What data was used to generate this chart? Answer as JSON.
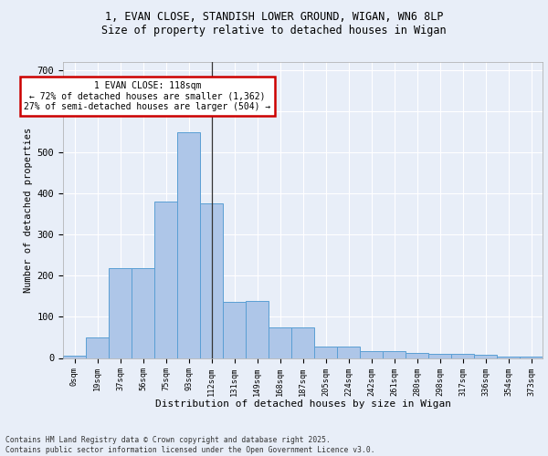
{
  "title_line1": "1, EVAN CLOSE, STANDISH LOWER GROUND, WIGAN, WN6 8LP",
  "title_line2": "Size of property relative to detached houses in Wigan",
  "xlabel": "Distribution of detached houses by size in Wigan",
  "ylabel": "Number of detached properties",
  "bar_labels": [
    "0sqm",
    "19sqm",
    "37sqm",
    "56sqm",
    "75sqm",
    "93sqm",
    "112sqm",
    "131sqm",
    "149sqm",
    "168sqm",
    "187sqm",
    "205sqm",
    "224sqm",
    "242sqm",
    "261sqm",
    "280sqm",
    "298sqm",
    "317sqm",
    "336sqm",
    "354sqm",
    "373sqm"
  ],
  "bar_values": [
    6,
    50,
    218,
    218,
    380,
    549,
    375,
    137,
    138,
    75,
    75,
    28,
    28,
    17,
    17,
    12,
    9,
    9,
    8,
    3,
    3
  ],
  "bar_color": "#aec6e8",
  "bar_edge_color": "#5a9fd4",
  "highlight_bar_index": 6,
  "annotation_text": "1 EVAN CLOSE: 118sqm\n← 72% of detached houses are smaller (1,362)\n27% of semi-detached houses are larger (504) →",
  "annotation_box_color": "#ffffff",
  "annotation_box_edge_color": "#cc0000",
  "ylim": [
    0,
    720
  ],
  "yticks": [
    0,
    100,
    200,
    300,
    400,
    500,
    600,
    700
  ],
  "background_color": "#e8eef8",
  "grid_color": "#ffffff",
  "footer_text": "Contains HM Land Registry data © Crown copyright and database right 2025.\nContains public sector information licensed under the Open Government Licence v3.0."
}
